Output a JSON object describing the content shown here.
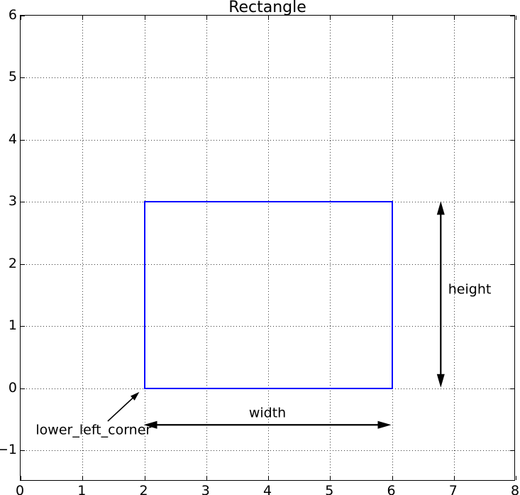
{
  "chart_data": {
    "type": "shape-plot",
    "title": "Rectangle",
    "xlabel": "",
    "ylabel": "",
    "xlim": [
      0,
      8
    ],
    "ylim": [
      -1.5,
      6
    ],
    "xticks": {
      "values": [
        0,
        1,
        2,
        3,
        4,
        5,
        6,
        7,
        8
      ],
      "labels": [
        "0",
        "1",
        "2",
        "3",
        "4",
        "5",
        "6",
        "7",
        "8"
      ]
    },
    "yticks": {
      "values": [
        -1,
        0,
        1,
        2,
        3,
        4,
        5,
        6
      ],
      "labels": [
        "−1",
        "0",
        "1",
        "2",
        "3",
        "4",
        "5",
        "6"
      ]
    },
    "grid": {
      "on": true,
      "linestyle": "dotted",
      "color": "#3a3a3a"
    },
    "legend": {
      "visible": false
    },
    "shapes": [
      {
        "name": "rectangle",
        "type": "rect",
        "x": 2,
        "y": 0,
        "width": 4,
        "height": 3,
        "edge_color": "#0000ff",
        "line_width": 2,
        "fill": "none"
      }
    ],
    "annotations": [
      {
        "id": "width",
        "label": "width",
        "text_pos": [
          4.0,
          -0.41
        ],
        "anchor": "center",
        "arrow": {
          "from": [
            2,
            -0.6
          ],
          "to": [
            6,
            -0.6
          ],
          "heads": "both",
          "line_width": 2.2,
          "head_len": 19,
          "head_halfwidth": 5.5,
          "color": "#000000"
        }
      },
      {
        "id": "height",
        "label": "height",
        "text_pos": [
          6.92,
          1.57
        ],
        "anchor": "left",
        "arrow": {
          "from": [
            6.8,
            0
          ],
          "to": [
            6.8,
            3
          ],
          "heads": "both",
          "line_width": 2.2,
          "head_len": 19,
          "head_halfwidth": 5.5,
          "color": "#000000"
        }
      },
      {
        "id": "lower_left_corner",
        "label": "lower_left_corner",
        "text_pos": [
          1.19,
          -0.69
        ],
        "anchor": "center",
        "arrow": {
          "from": [
            1.42,
            -0.54
          ],
          "to": [
            1.93,
            -0.07
          ],
          "heads": "end",
          "line_width": 1.6,
          "head_len": 13,
          "head_halfwidth": 4.2,
          "color": "#000000"
        }
      }
    ]
  }
}
